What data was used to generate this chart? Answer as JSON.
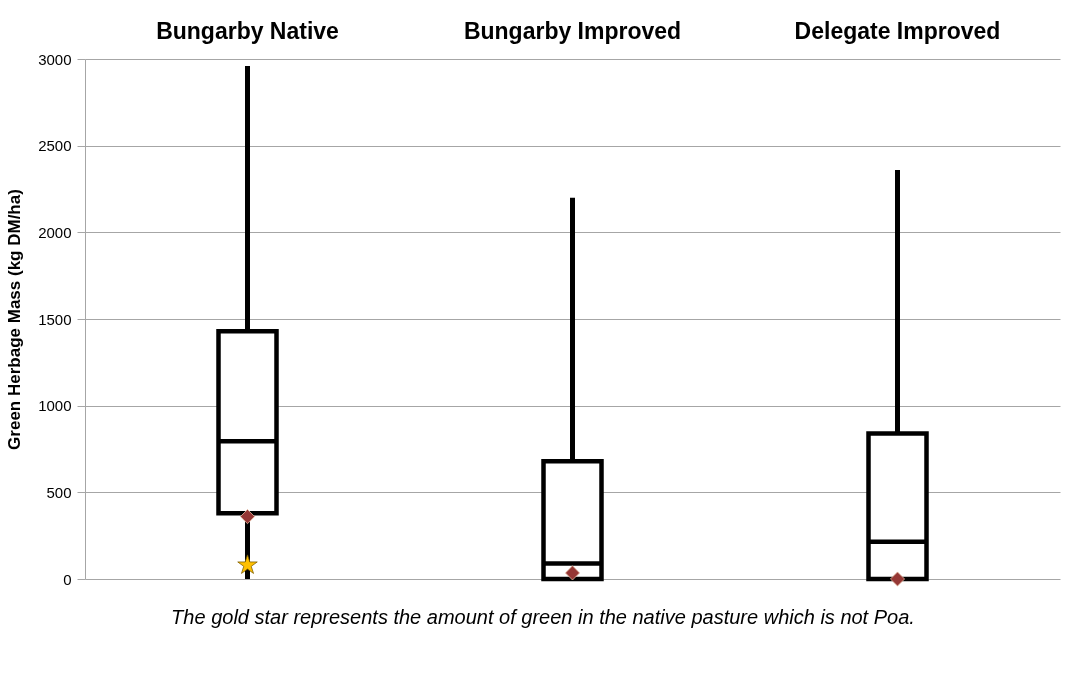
{
  "chart_data": {
    "type": "box",
    "ylabel": "Green Herbage Mass (kg DM/ha)",
    "categories": [
      "Bungarby Native",
      "Bungarby Improved",
      "Delegate Improved"
    ],
    "boxes": [
      {
        "low": 0,
        "q1": 380,
        "median": 795,
        "q3": 1430,
        "high": 2960
      },
      {
        "low": 0,
        "q1": 0,
        "median": 90,
        "q3": 680,
        "high": 2200
      },
      {
        "low": 0,
        "q1": 0,
        "median": 215,
        "q3": 840,
        "high": 2360
      }
    ],
    "series": [
      {
        "type": "scatter",
        "color": "#953735",
        "marker": "diamond",
        "x": [
          "Bungarby Native",
          "Bungarby Improved",
          "Delegate Improved"
        ],
        "values": [
          360,
          35,
          0
        ]
      },
      {
        "type": "scatter",
        "color": "#ffc000",
        "marker": "star",
        "x": [
          "Bungarby Native"
        ],
        "values": [
          80
        ]
      }
    ],
    "ylim": [
      0,
      3000
    ],
    "yticks": [
      0,
      500,
      1000,
      1500,
      2000,
      2500,
      3000
    ],
    "grid": "y",
    "annotations": [
      "The gold star represents the amount of green in the native pasture which is not Poa."
    ]
  }
}
